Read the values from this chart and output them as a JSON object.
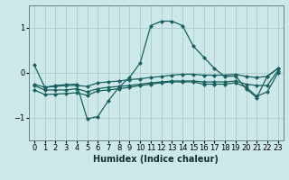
{
  "title": "",
  "xlabel": "Humidex (Indice chaleur)",
  "ylabel": "",
  "bg_color": "#cce8e8",
  "grid_color": "#b0d0d0",
  "line_color": "#1a6060",
  "xlim": [
    -0.5,
    23.5
  ],
  "ylim": [
    -1.5,
    1.5
  ],
  "xticks": [
    0,
    1,
    2,
    3,
    4,
    5,
    6,
    7,
    8,
    9,
    10,
    11,
    12,
    13,
    14,
    15,
    16,
    17,
    18,
    19,
    20,
    21,
    22,
    23
  ],
  "yticks": [
    -1,
    0,
    1
  ],
  "curve1_x": [
    0,
    1,
    2,
    3,
    4,
    5,
    6,
    7,
    8,
    9,
    10,
    11,
    12,
    13,
    14,
    15,
    16,
    17,
    18,
    19,
    20,
    21,
    22,
    23
  ],
  "curve1_y": [
    0.18,
    -0.32,
    -0.28,
    -0.26,
    -0.25,
    -1.02,
    -0.97,
    -0.62,
    -0.32,
    -0.1,
    0.22,
    1.05,
    1.15,
    1.15,
    1.05,
    0.6,
    0.35,
    0.1,
    -0.08,
    -0.07,
    -0.35,
    -0.55,
    -0.07,
    0.1
  ],
  "curve2_x": [
    0,
    1,
    2,
    3,
    4,
    5,
    6,
    7,
    8,
    9,
    10,
    11,
    12,
    13,
    14,
    15,
    16,
    17,
    18,
    19,
    20,
    21,
    22,
    23
  ],
  "curve2_y": [
    -0.25,
    -0.32,
    -0.3,
    -0.28,
    -0.28,
    -0.3,
    -0.22,
    -0.2,
    -0.18,
    -0.15,
    -0.13,
    -0.1,
    -0.08,
    -0.05,
    -0.03,
    -0.03,
    -0.05,
    -0.05,
    -0.05,
    -0.03,
    -0.08,
    -0.1,
    -0.08,
    0.1
  ],
  "curve3_x": [
    0,
    1,
    2,
    3,
    4,
    5,
    6,
    7,
    8,
    9,
    10,
    11,
    12,
    13,
    14,
    15,
    16,
    17,
    18,
    19,
    20,
    21,
    22,
    23
  ],
  "curve3_y": [
    -0.28,
    -0.38,
    -0.38,
    -0.38,
    -0.35,
    -0.42,
    -0.35,
    -0.32,
    -0.3,
    -0.28,
    -0.25,
    -0.22,
    -0.2,
    -0.18,
    -0.18,
    -0.18,
    -0.2,
    -0.2,
    -0.2,
    -0.18,
    -0.25,
    -0.28,
    -0.28,
    0.05
  ],
  "curve4_x": [
    0,
    1,
    2,
    3,
    4,
    5,
    6,
    7,
    8,
    9,
    10,
    11,
    12,
    13,
    14,
    15,
    16,
    17,
    18,
    19,
    20,
    21,
    22,
    23
  ],
  "curve4_y": [
    -0.38,
    -0.48,
    -0.47,
    -0.46,
    -0.44,
    -0.5,
    -0.4,
    -0.38,
    -0.35,
    -0.32,
    -0.28,
    -0.25,
    -0.22,
    -0.2,
    -0.2,
    -0.2,
    -0.25,
    -0.25,
    -0.25,
    -0.22,
    -0.32,
    -0.52,
    -0.42,
    0.0
  ],
  "marker": "D",
  "marker_size": 2.5
}
